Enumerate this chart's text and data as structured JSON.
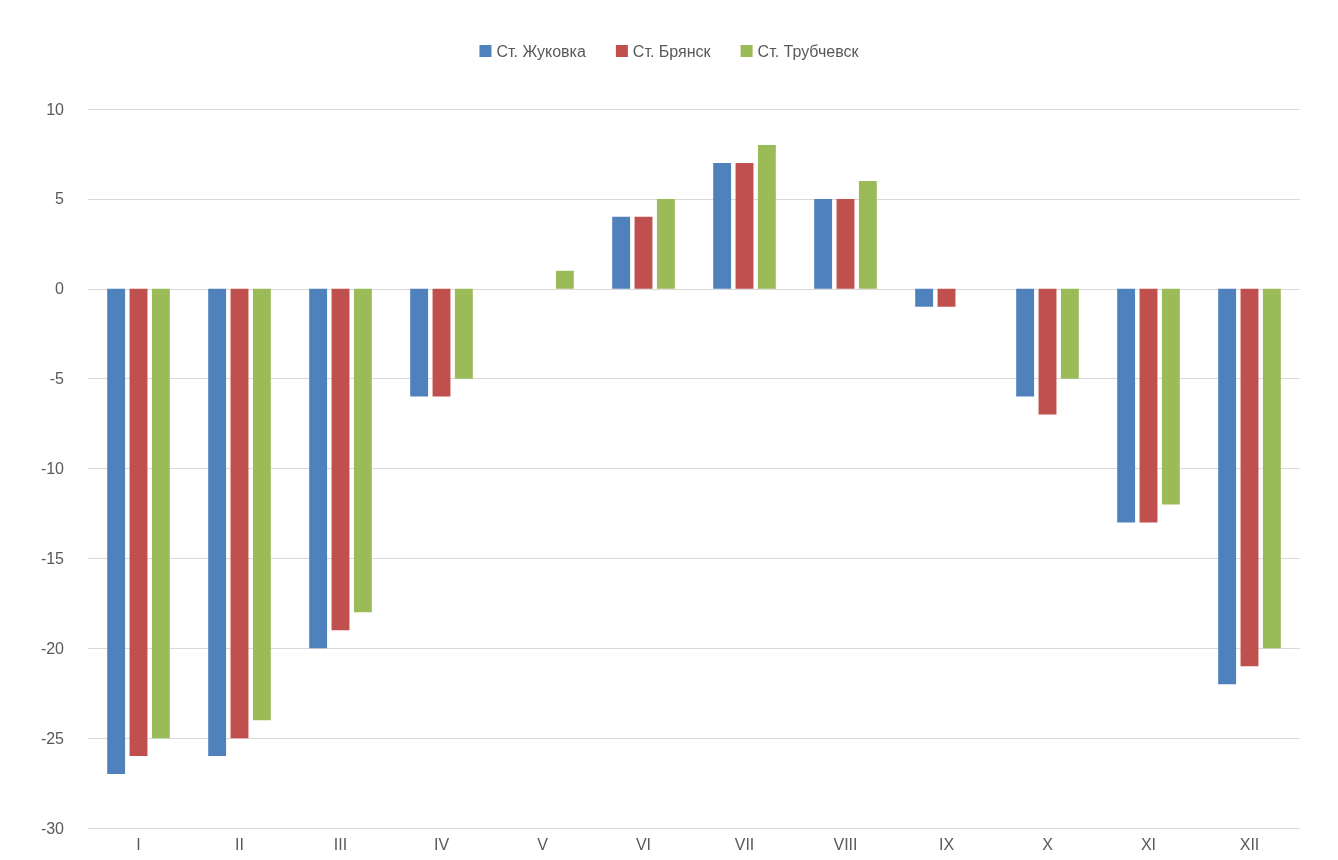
{
  "chart_data": {
    "type": "bar",
    "categories": [
      "I",
      "II",
      "III",
      "IV",
      "V",
      "VI",
      "VII",
      "VIII",
      "IX",
      "X",
      "XI",
      "XII"
    ],
    "series": [
      {
        "name": "Ст. Жуковка",
        "color": "#4f81bd",
        "values": [
          -27,
          -26,
          -20,
          -6,
          0,
          4,
          7,
          5,
          -1,
          -6,
          -13,
          -22
        ]
      },
      {
        "name": "Ст. Брянск",
        "color": "#c0504d",
        "values": [
          -26,
          -25,
          -19,
          -6,
          0,
          4,
          7,
          5,
          -1,
          -7,
          -13,
          -21
        ]
      },
      {
        "name": "Ст. Трубчевск",
        "color": "#9bbb59",
        "values": [
          -25,
          -24,
          -18,
          -5,
          1,
          5,
          8,
          6,
          0,
          -5,
          -12,
          -20
        ]
      }
    ],
    "ylim": [
      -30,
      10
    ],
    "yticks": [
      -30,
      -25,
      -20,
      -15,
      -10,
      -5,
      0,
      5,
      10
    ],
    "grid": "y",
    "legend": "top"
  }
}
